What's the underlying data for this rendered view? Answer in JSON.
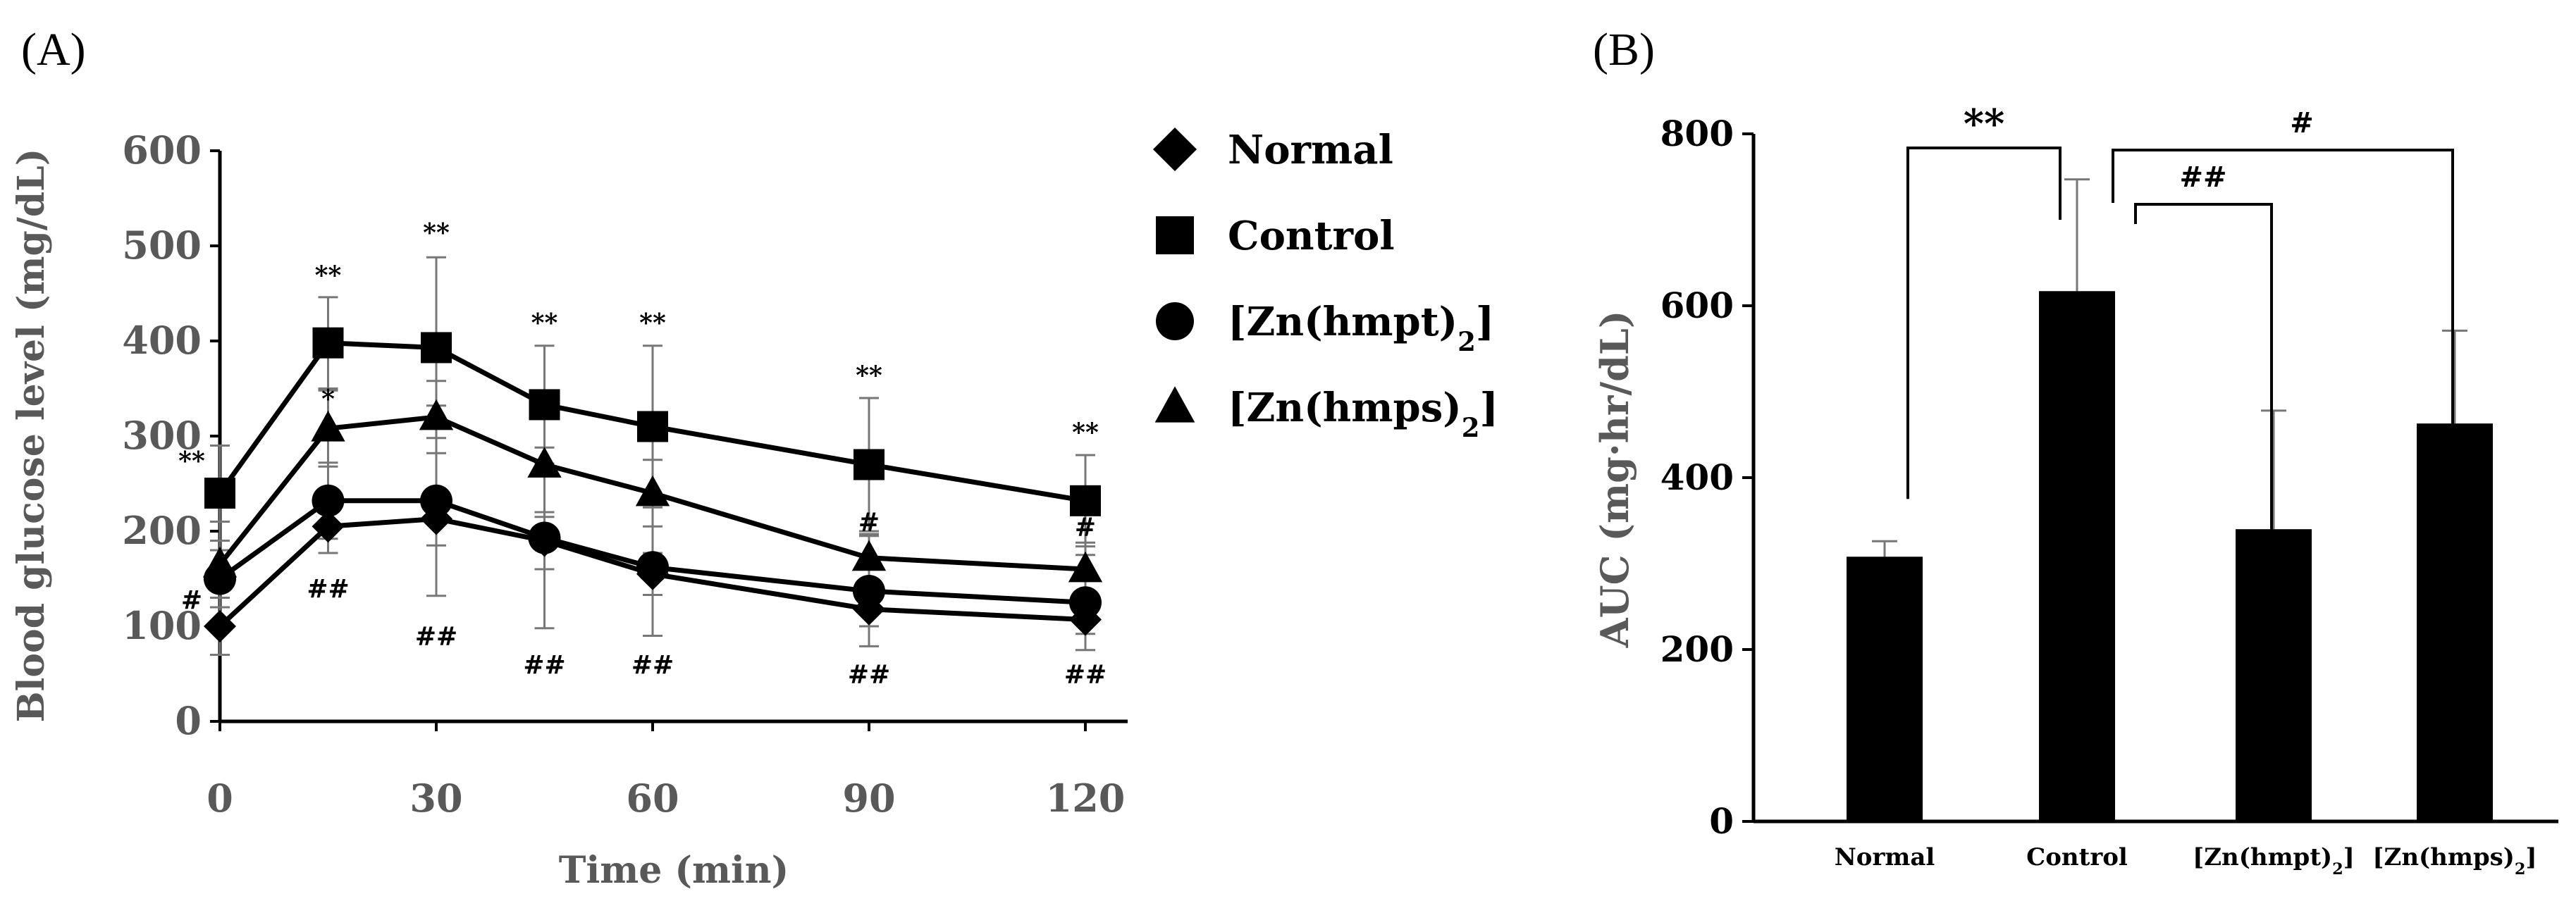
{
  "chart_data": [
    {
      "panel_label": "(A)",
      "type": "line",
      "xlabel": "Time (min)",
      "ylabel": "Blood glucose level (mg/dL)",
      "xlim": [
        0,
        120
      ],
      "ylim": [
        0,
        600
      ],
      "xticks": [
        "0",
        "30",
        "60",
        "90",
        "120"
      ],
      "yticks": [
        "0",
        "100",
        "200",
        "300",
        "400",
        "500",
        "600"
      ],
      "x": [
        0,
        15,
        30,
        45,
        60,
        90,
        120
      ],
      "series": [
        {
          "name": "Normal",
          "marker": "diamond",
          "values": [
            100,
            205,
            213,
            190,
            155,
            118,
            107
          ],
          "error": [
            30,
            28,
            28,
            30,
            22,
            18,
            15
          ]
        },
        {
          "name": "Control",
          "marker": "square",
          "values": [
            240,
            398,
            393,
            333,
            310,
            270,
            232
          ],
          "error": [
            50,
            48,
            95,
            62,
            85,
            70,
            48
          ]
        },
        {
          "name": "[Zn(hmpt)2]",
          "marker": "circle",
          "values": [
            150,
            232,
            232,
            193,
            162,
            137,
            125
          ],
          "error": [
            30,
            40,
            100,
            95,
            72,
            58,
            50
          ]
        },
        {
          "name": "[Zn(hmps)2]",
          "marker": "triangle",
          "values": [
            165,
            308,
            320,
            270,
            240,
            172,
            160
          ],
          "error": [
            45,
            40,
            38,
            55,
            35,
            25,
            28
          ]
        }
      ],
      "legend": {
        "position": "right",
        "items": [
          {
            "marker": "diamond",
            "label": "Normal",
            "sub": ""
          },
          {
            "marker": "square",
            "label": "Control",
            "sub": ""
          },
          {
            "marker": "circle",
            "label": "[Zn(hmpt)",
            "sub": "2",
            "suffix": "]"
          },
          {
            "marker": "triangle",
            "label": "[Zn(hmps)",
            "sub": "2",
            "suffix": "]"
          }
        ]
      },
      "annotations": [
        {
          "text": "**",
          "x": 0,
          "y": 265
        },
        {
          "text": "#",
          "x": 0,
          "y": 118
        },
        {
          "text": "**",
          "x": 15,
          "y": 460
        },
        {
          "text": "*",
          "x": 15,
          "y": 330
        },
        {
          "text": "##",
          "x": 15,
          "y": 130
        },
        {
          "text": "**",
          "x": 30,
          "y": 505
        },
        {
          "text": "##",
          "x": 30,
          "y": 80
        },
        {
          "text": "**",
          "x": 45,
          "y": 410
        },
        {
          "text": "##",
          "x": 45,
          "y": 50
        },
        {
          "text": "**",
          "x": 60,
          "y": 410
        },
        {
          "text": "##",
          "x": 60,
          "y": 50
        },
        {
          "text": "**",
          "x": 90,
          "y": 355
        },
        {
          "text": "#",
          "x": 90,
          "y": 200
        },
        {
          "text": "##",
          "x": 90,
          "y": 40
        },
        {
          "text": "**",
          "x": 120,
          "y": 295
        },
        {
          "text": "#",
          "x": 120,
          "y": 195
        },
        {
          "text": "##",
          "x": 120,
          "y": 40
        }
      ]
    },
    {
      "panel_label": "(B)",
      "type": "bar",
      "ylabel": "AUC (mg·hr/dL)",
      "ylim": [
        0,
        800
      ],
      "yticks": [
        "0",
        "200",
        "400",
        "600",
        "800"
      ],
      "categories": [
        {
          "label": "Normal",
          "sub": "",
          "suffix": ""
        },
        {
          "label": "Control",
          "sub": "",
          "suffix": ""
        },
        {
          "label": "[Zn(hmpt)",
          "sub": "2",
          "suffix": "]"
        },
        {
          "label": "[Zn(hmps)",
          "sub": "2",
          "suffix": "]"
        }
      ],
      "values": [
        308,
        617,
        340,
        463
      ],
      "error": [
        18,
        130,
        138,
        108
      ],
      "significance": [
        {
          "from": 0,
          "to": 1,
          "text": "**",
          "y": 785
        },
        {
          "from": 1,
          "to": 3,
          "text": "#",
          "y": 785
        },
        {
          "from": 1,
          "to": 2,
          "text": "##",
          "y": 720
        }
      ]
    }
  ]
}
